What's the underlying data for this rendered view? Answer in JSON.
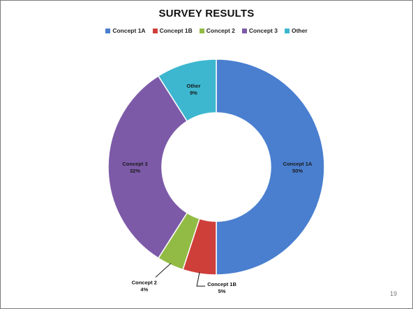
{
  "chart_data": {
    "type": "pie",
    "title": "SURVEY RESULTS",
    "categories": [
      "Concept 1A",
      "Concept 1B",
      "Concept 2",
      "Concept 3",
      "Other"
    ],
    "values": [
      50,
      5,
      4,
      32,
      9
    ],
    "slice_labels": [
      {
        "name": "Concept  1A",
        "pct": "50%"
      },
      {
        "name": "Concept 1B",
        "pct": "5%"
      },
      {
        "name": "Concept 2",
        "pct": "4%"
      },
      {
        "name": "Concept 3",
        "pct": "32%"
      },
      {
        "name": "Other",
        "pct": "9%"
      }
    ],
    "colors": [
      "#4a7fcf",
      "#cf3f3a",
      "#92bb45",
      "#7d5aa8",
      "#3cb7cf"
    ],
    "donut": true,
    "legend_position": "top"
  },
  "page_number": "19"
}
